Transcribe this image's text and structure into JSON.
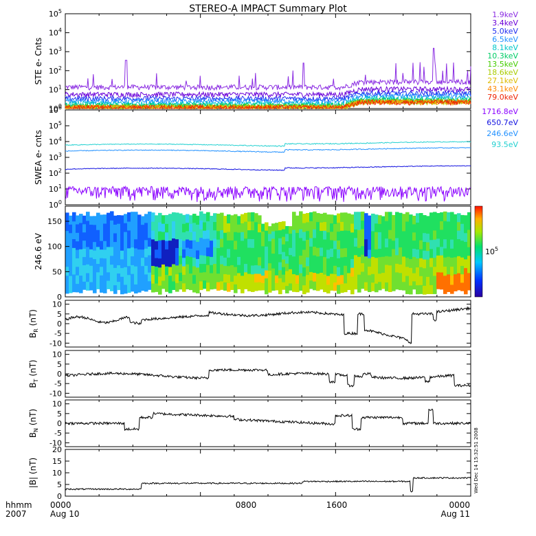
{
  "title": "STEREO-A IMPACT Summary Plot",
  "footer": {
    "xlabel": "hhmm",
    "year": "2007",
    "ticks": [
      "0000",
      "0800",
      "1600",
      "0000"
    ],
    "dates": [
      "Aug 10",
      "",
      "",
      "Aug 11"
    ]
  },
  "side_stamp": "Wed Dec 14 15:32:51 2008",
  "chart_data": [
    {
      "type": "line",
      "panel": "ste",
      "ylabel": "STE e- Cnts",
      "yscale": "log",
      "ylim": [
        1,
        100000
      ],
      "y_ticks": [
        {
          "base": "10",
          "exp": "0"
        },
        {
          "base": "10",
          "exp": "1"
        },
        {
          "base": "10",
          "exp": "2"
        },
        {
          "base": "10",
          "exp": "3"
        },
        {
          "base": "10",
          "exp": "4"
        },
        {
          "base": "10",
          "exp": "5"
        }
      ],
      "x_hours": [
        0,
        24
      ],
      "series": [
        {
          "name": "1.9keV",
          "color": "#8a2be2",
          "base": 12
        },
        {
          "name": "3.4keV",
          "color": "#6a00d8",
          "base": 5
        },
        {
          "name": "5.0keV",
          "color": "#1e2cf0",
          "base": 3
        },
        {
          "name": "6.5keV",
          "color": "#1e90ff",
          "base": 2.2
        },
        {
          "name": "8.1keV",
          "color": "#00c8c8",
          "base": 1.6
        },
        {
          "name": "10.3keV",
          "color": "#00cc66",
          "base": 1.3
        },
        {
          "name": "13.5keV",
          "color": "#44cc00",
          "base": 1.15
        },
        {
          "name": "18.6keV",
          "color": "#aacc00",
          "base": 1.08
        },
        {
          "name": "27.1keV",
          "color": "#ddbb00",
          "base": 1.04
        },
        {
          "name": "43.1keV",
          "color": "#ff8800",
          "base": 1.02
        },
        {
          "name": "79.0keV",
          "color": "#ee2200",
          "base": 1.01
        }
      ]
    },
    {
      "type": "line",
      "panel": "swea",
      "ylabel": "SWEA e- cnts",
      "yscale": "log",
      "ylim": [
        1,
        1000000
      ],
      "y_ticks": [
        {
          "base": "10",
          "exp": "0"
        },
        {
          "base": "10",
          "exp": "1"
        },
        {
          "base": "10",
          "exp": "2"
        },
        {
          "base": "10",
          "exp": "3"
        },
        {
          "base": "10",
          "exp": "4"
        },
        {
          "base": "10",
          "exp": "5"
        },
        {
          "base": "10",
          "exp": "6"
        }
      ],
      "x_hours": [
        0,
        24
      ],
      "series": [
        {
          "name": "1716.8eV",
          "color": "#8a00ff",
          "base": 5
        },
        {
          "name": "650.7eV",
          "color": "#1010e0",
          "base": 180
        },
        {
          "name": "246.6eV",
          "color": "#2090ff",
          "base": 2500
        },
        {
          "name": "93.5eV",
          "color": "#20d0d0",
          "base": 6000
        }
      ]
    },
    {
      "type": "heatmap",
      "panel": "pad",
      "ylabel": "246.6 eV",
      "ylim": [
        0,
        180
      ],
      "y_ticks": [
        "0",
        "50",
        "100",
        "150"
      ],
      "colorbar_label": {
        "base": "10",
        "exp": "5"
      },
      "x_hours": [
        0,
        24
      ]
    },
    {
      "type": "line",
      "panel": "br",
      "ylabel": {
        "main": "B",
        "sub": "R",
        "unit": " (nT)"
      },
      "ylim": [
        -12,
        12
      ],
      "y_ticks": [
        "-10",
        "-5",
        "0",
        "5",
        "10"
      ],
      "x_hours": [
        0,
        24
      ]
    },
    {
      "type": "line",
      "panel": "bt",
      "ylabel": {
        "main": "B",
        "sub": "T",
        "unit": " (nT)"
      },
      "ylim": [
        -12,
        12
      ],
      "y_ticks": [
        "-10",
        "-5",
        "0",
        "5",
        "10"
      ],
      "x_hours": [
        0,
        24
      ]
    },
    {
      "type": "line",
      "panel": "bn",
      "ylabel": {
        "main": "B",
        "sub": "N",
        "unit": " (nT)"
      },
      "ylim": [
        -12,
        12
      ],
      "y_ticks": [
        "-10",
        "-5",
        "0",
        "5",
        "10"
      ],
      "x_hours": [
        0,
        24
      ]
    },
    {
      "type": "line",
      "panel": "bmag",
      "ylabel": {
        "main": "|B|",
        "sub": "",
        "unit": " (nT)"
      },
      "ylim": [
        0,
        20
      ],
      "y_ticks": [
        "0",
        "5",
        "10",
        "15",
        "20"
      ],
      "x_hours": [
        0,
        24
      ]
    }
  ]
}
